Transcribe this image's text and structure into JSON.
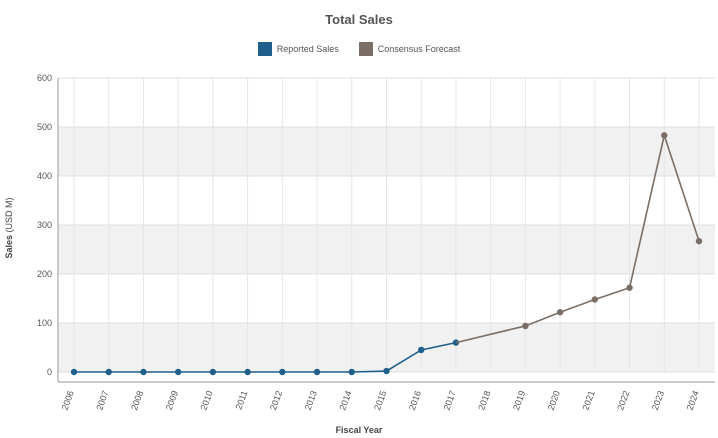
{
  "chart_data": {
    "type": "line",
    "title": "Total Sales",
    "xlabel": "Fiscal Year",
    "ylabel": "Sales",
    "ylabel_unit": "(USD M)",
    "ylim": [
      0,
      600
    ],
    "yticks": [
      0,
      100,
      200,
      300,
      400,
      500,
      600
    ],
    "grid": true,
    "legend_position": "top-center",
    "categories": [
      "2006",
      "2007",
      "2008",
      "2009",
      "2010",
      "2011",
      "2012",
      "2013",
      "2014",
      "2015",
      "2016",
      "2017",
      "2018",
      "2019",
      "2020",
      "2021",
      "2022",
      "2023",
      "2024"
    ],
    "series": [
      {
        "name": "Reported Sales",
        "color": "#1f5f8b",
        "points": [
          {
            "x": "2006",
            "y": 0
          },
          {
            "x": "2007",
            "y": 0
          },
          {
            "x": "2008",
            "y": 0
          },
          {
            "x": "2009",
            "y": 0
          },
          {
            "x": "2010",
            "y": 0
          },
          {
            "x": "2011",
            "y": 0
          },
          {
            "x": "2012",
            "y": 0
          },
          {
            "x": "2013",
            "y": 0
          },
          {
            "x": "2014",
            "y": 0
          },
          {
            "x": "2015",
            "y": 2
          },
          {
            "x": "2016",
            "y": 45
          },
          {
            "x": "2017",
            "y": 60
          }
        ]
      },
      {
        "name": "Consensus Forecast",
        "color": "#7a6e66",
        "points": [
          {
            "x": "2017",
            "y": 60
          },
          {
            "x": "2019",
            "y": 94
          },
          {
            "x": "2020",
            "y": 122
          },
          {
            "x": "2021",
            "y": 148
          },
          {
            "x": "2022",
            "y": 172
          },
          {
            "x": "2023",
            "y": 483
          },
          {
            "x": "2024",
            "y": 267
          }
        ],
        "markers": [
          "2019",
          "2020",
          "2021",
          "2022",
          "2023",
          "2024"
        ]
      }
    ]
  }
}
